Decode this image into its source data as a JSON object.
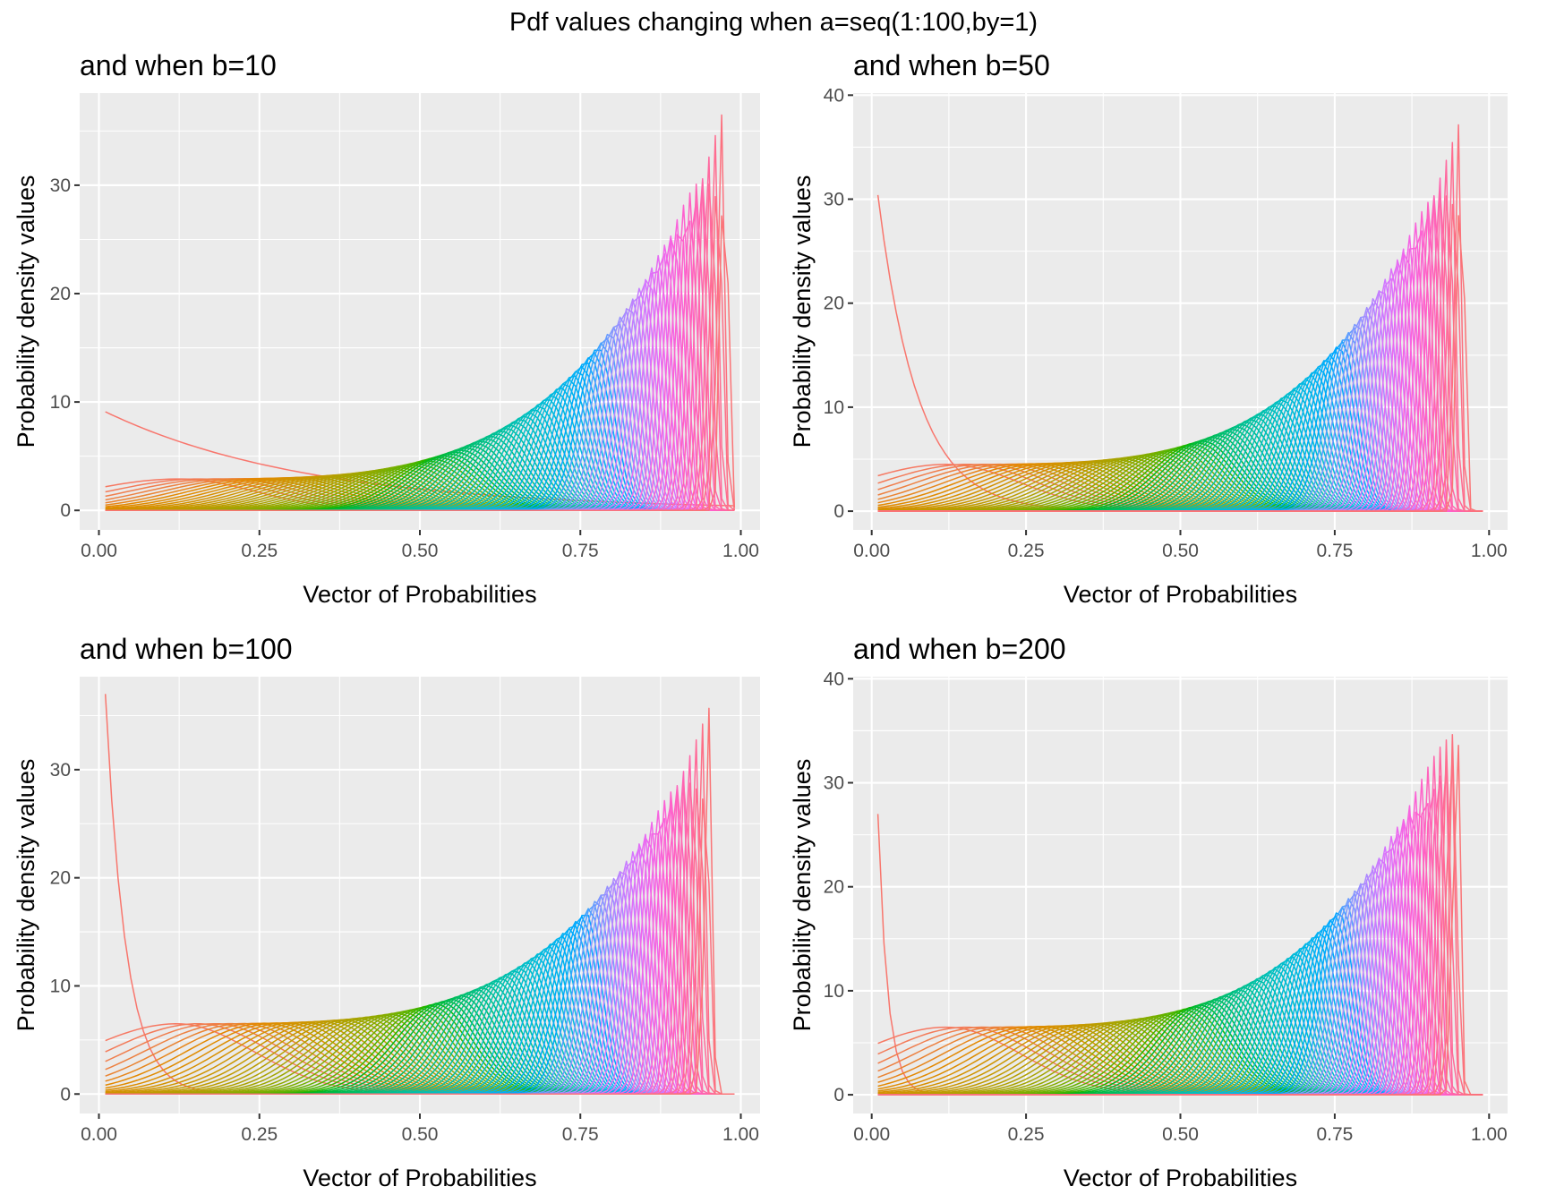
{
  "figure_title": "Pdf values changing when a=seq(1:100,by=1)",
  "chart_data": [
    {
      "type": "line",
      "title": "and when b=10",
      "xlabel": "Vector of Probabilities",
      "ylabel": "Probability density values",
      "xlim": [
        -0.03,
        1.03
      ],
      "ylim": [
        -1.8,
        38.5
      ],
      "x_ticks": [
        "0.00",
        "0.25",
        "0.50",
        "0.75",
        "1.00"
      ],
      "x_tick_values": [
        0,
        0.25,
        0.5,
        0.75,
        1
      ],
      "y_ticks": [
        "0",
        "10",
        "20",
        "30"
      ],
      "y_tick_values": [
        0,
        10,
        20,
        30
      ],
      "grid": true,
      "series_count": 100,
      "series_param": "a",
      "series_a_values": [
        1,
        100
      ],
      "b": 10,
      "x_support": [
        0.01,
        0.99
      ],
      "peak_x_last_series": 0.975,
      "peak_y_max": 37.4,
      "first_series_y_at_x0": 9.1,
      "legend": "none"
    },
    {
      "type": "line",
      "title": "and when b=50",
      "xlabel": "Vector of Probabilities",
      "ylabel": "Probability density values",
      "xlim": [
        -0.03,
        1.03
      ],
      "ylim": [
        -1.8,
        40.2
      ],
      "x_ticks": [
        "0.00",
        "0.25",
        "0.50",
        "0.75",
        "1.00"
      ],
      "x_tick_values": [
        0,
        0.25,
        0.5,
        0.75,
        1
      ],
      "y_ticks": [
        "0",
        "10",
        "20",
        "30",
        "40"
      ],
      "y_tick_values": [
        0,
        10,
        20,
        30,
        40
      ],
      "grid": true,
      "series_count": 100,
      "series_param": "a",
      "series_a_values": [
        1,
        100
      ],
      "b": 50,
      "x_support": [
        0.01,
        0.99
      ],
      "peak_x_last_series": 0.955,
      "peak_y_max": 38.1,
      "first_series_y_at_x0": 30.4,
      "legend": "none"
    },
    {
      "type": "line",
      "title": "and when b=100",
      "xlabel": "Vector of Probabilities",
      "ylabel": "Probability density values",
      "xlim": [
        -0.03,
        1.03
      ],
      "ylim": [
        -1.8,
        38.6
      ],
      "x_ticks": [
        "0.00",
        "0.25",
        "0.50",
        "0.75",
        "1.00"
      ],
      "x_tick_values": [
        0,
        0.25,
        0.5,
        0.75,
        1
      ],
      "y_ticks": [
        "0",
        "10",
        "20",
        "30"
      ],
      "y_tick_values": [
        0,
        10,
        20,
        30
      ],
      "grid": true,
      "series_count": 100,
      "series_param": "a",
      "series_a_values": [
        1,
        100
      ],
      "b": 100,
      "x_support": [
        0.01,
        0.99
      ],
      "peak_x_last_series": 0.95,
      "peak_y_max": 35.8,
      "first_series_y_at_x0": 37.0,
      "legend": "none"
    },
    {
      "type": "line",
      "title": "and when b=200",
      "xlabel": "Vector of Probabilities",
      "ylabel": "Probability density values",
      "xlim": [
        -0.03,
        1.03
      ],
      "ylim": [
        -1.8,
        40.2
      ],
      "x_ticks": [
        "0.00",
        "0.25",
        "0.50",
        "0.75",
        "1.00"
      ],
      "x_tick_values": [
        0,
        0.25,
        0.5,
        0.75,
        1
      ],
      "y_ticks": [
        "0",
        "10",
        "20",
        "30",
        "40"
      ],
      "y_tick_values": [
        0,
        10,
        20,
        30,
        40
      ],
      "grid": true,
      "series_count": 100,
      "series_param": "a",
      "series_a_values": [
        1,
        100
      ],
      "b": 200,
      "x_support": [
        0.01,
        0.99
      ],
      "peak_x_last_series": 0.948,
      "peak_y_max": 38.2,
      "first_series_y_at_x0": 27.0,
      "legend": "none"
    }
  ],
  "colors": {
    "panel_background": "#ebebeb",
    "grid": "#ffffff",
    "hue_start": 15,
    "hue_end": 375,
    "chroma": 100,
    "luminance": 65
  }
}
